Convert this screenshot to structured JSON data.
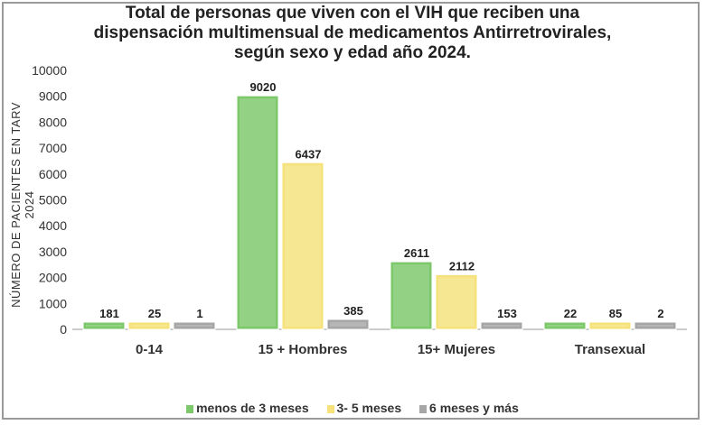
{
  "chart_data": {
    "type": "bar",
    "title": "Total de personas que viven con el VIH que reciben una dispensación multimensual de medicamentos Antirretrovirales, según sexo y edad año 2024.",
    "title_lines": [
      "Total de personas que viven con el VIH que reciben una",
      "dispensación multimensual de medicamentos Antirretrovirales,",
      "según sexo y edad año 2024."
    ],
    "xlabel": "",
    "ylabel": "NÚMERO DE PACIENTES EN TARV 2024",
    "ylim": [
      0,
      10000
    ],
    "yticks": [
      0,
      1000,
      2000,
      3000,
      4000,
      5000,
      6000,
      7000,
      8000,
      9000,
      10000
    ],
    "categories": [
      "0-14",
      "15 + Hombres",
      "15+ Mujeres",
      "Transexual"
    ],
    "series": [
      {
        "name": "menos de 3 meses",
        "values": [
          181,
          9020,
          2611,
          22
        ],
        "color": "#7cc86a"
      },
      {
        "name": "3- 5 meses",
        "values": [
          25,
          6437,
          2112,
          85
        ],
        "color": "#f5e27a"
      },
      {
        "name": "6 meses y más",
        "values": [
          1,
          385,
          153,
          2
        ],
        "color": "#a6a6a6"
      }
    ],
    "grid": false,
    "legend": "bottom",
    "data_labels": true
  }
}
